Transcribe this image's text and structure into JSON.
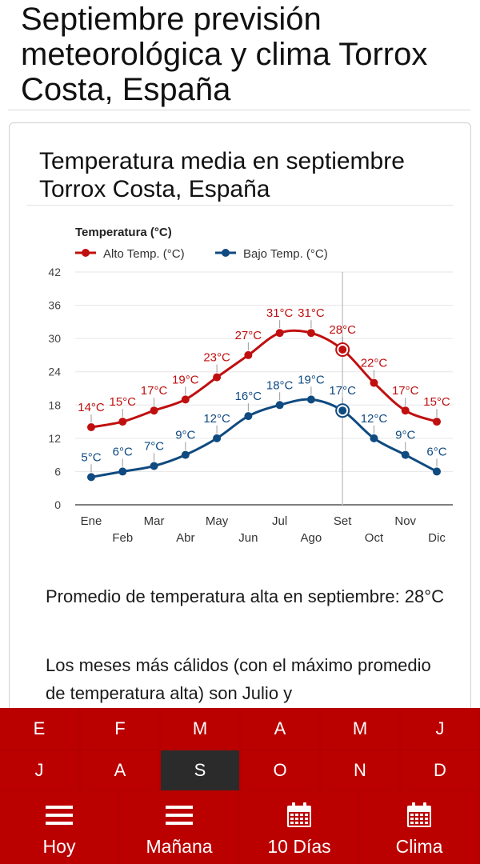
{
  "page": {
    "title": "Septiembre previsión meteorológica y clima Torrox Costa, España"
  },
  "card": {
    "title": "Temperatura media en septiembre Torrox Costa, España",
    "para1": "Promedio de temperatura alta en septiembre: 28°C",
    "para2": "Los meses más cálidos (con el máximo promedio de temperatura alta) son Julio y"
  },
  "chart_data": {
    "type": "line",
    "title": "Temperatura (°C)",
    "categories": [
      "Ene",
      "Feb",
      "Mar",
      "Abr",
      "May",
      "Jun",
      "Jul",
      "Ago",
      "Set",
      "Oct",
      "Nov",
      "Dic"
    ],
    "series": [
      {
        "name": "Alto Temp. (°C)",
        "color": "#c00f0f",
        "values": [
          14,
          15,
          17,
          19,
          23,
          27,
          31,
          31,
          28,
          22,
          17,
          15
        ]
      },
      {
        "name": "Bajo Temp. (°C)",
        "color": "#0f4a80",
        "values": [
          5,
          6,
          7,
          9,
          12,
          16,
          18,
          19,
          17,
          12,
          9,
          6
        ]
      }
    ],
    "ylim": [
      0,
      42
    ],
    "yticks": [
      0,
      6,
      12,
      18,
      24,
      30,
      36,
      42
    ],
    "highlight_index": 8,
    "legend": "top-left",
    "grid": true
  },
  "months": [
    "E",
    "F",
    "M",
    "A",
    "M",
    "J",
    "J",
    "A",
    "S",
    "O",
    "N",
    "D"
  ],
  "selected_month_index": 8,
  "nav": [
    {
      "label": "Hoy",
      "icon": "menu-icon"
    },
    {
      "label": "Mañana",
      "icon": "menu-icon"
    },
    {
      "label": "10 Días",
      "icon": "calendar-icon"
    },
    {
      "label": "Clima",
      "icon": "calendar-icon"
    }
  ],
  "colors": {
    "brand": "#bb0000",
    "selected": "#2b2b2b"
  }
}
